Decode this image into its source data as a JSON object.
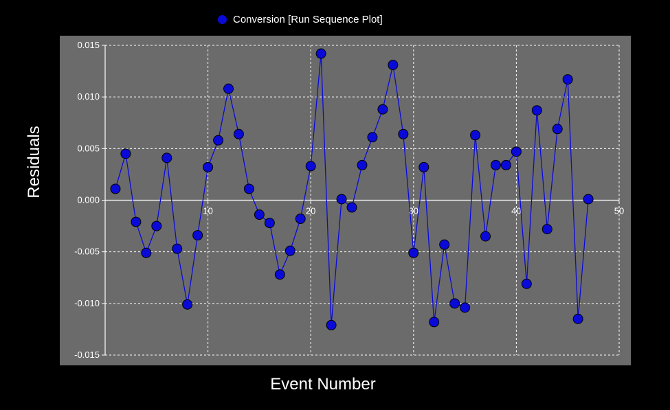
{
  "legend": {
    "label": "Conversion  [Run Sequence Plot]",
    "marker_color": "#0a0ad8"
  },
  "colors": {
    "background": "#000000",
    "plot_area": "#6b6b6b",
    "series": "#0a0ad8",
    "grid": "#ffffff"
  },
  "chart_data": {
    "type": "line",
    "xlabel": "Event Number",
    "ylabel": "Residuals",
    "xlim": [
      0,
      50
    ],
    "ylim": [
      -0.015,
      0.015
    ],
    "xticks": [
      10,
      20,
      30,
      40,
      50
    ],
    "yticks": [
      0.015,
      0.01,
      0.005,
      0.0,
      -0.005,
      -0.01,
      -0.015
    ],
    "ytick_labels": [
      "0.015",
      "0.010",
      "0.005",
      "0.000",
      "-0.005",
      "-0.010",
      "-0.015"
    ],
    "grid": true,
    "series": [
      {
        "name": "Conversion",
        "markers": "circle",
        "x": [
          1,
          2,
          3,
          4,
          5,
          6,
          7,
          8,
          9,
          10,
          11,
          12,
          13,
          14,
          15,
          16,
          17,
          18,
          19,
          20,
          21,
          22,
          23,
          24,
          25,
          26,
          27,
          28,
          29,
          30,
          31,
          32,
          33,
          34,
          35,
          36,
          37,
          38,
          39,
          40,
          41,
          42,
          43,
          44,
          45,
          46,
          47
        ],
        "y": [
          0.0011,
          0.0045,
          -0.0021,
          -0.0051,
          -0.0025,
          0.0041,
          -0.0047,
          -0.0101,
          -0.0034,
          0.0032,
          0.0058,
          0.0108,
          0.0064,
          0.0011,
          -0.0014,
          -0.0022,
          -0.0072,
          -0.0049,
          -0.0018,
          0.0033,
          0.0142,
          -0.0121,
          0.0001,
          -0.0007,
          0.0034,
          0.0061,
          0.0088,
          0.0131,
          0.0064,
          -0.0051,
          0.0032,
          -0.0118,
          -0.0043,
          -0.01,
          -0.0104,
          0.0063,
          -0.0035,
          0.0034,
          0.0034,
          0.0047,
          -0.0081,
          0.0087,
          -0.0028,
          0.0069,
          0.0117,
          -0.0115,
          0.0001
        ]
      }
    ]
  }
}
